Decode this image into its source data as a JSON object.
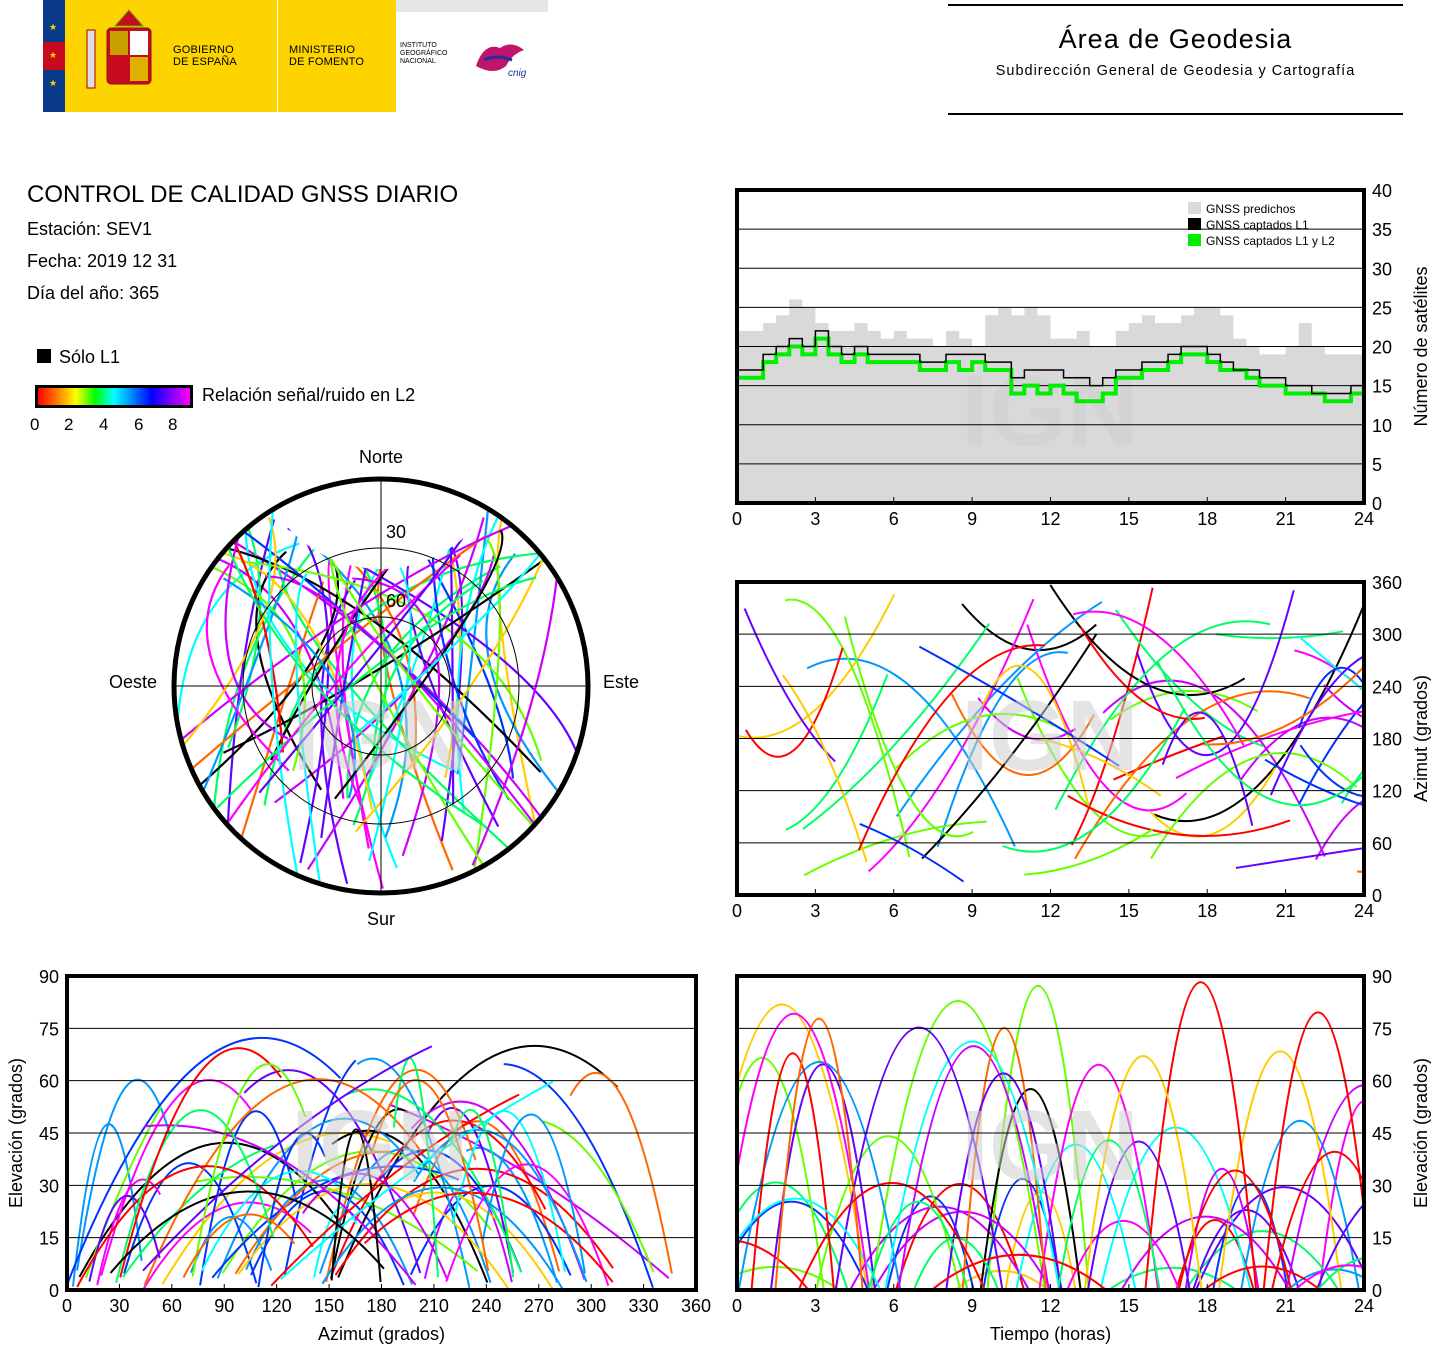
{
  "header": {
    "logo_gov": [
      "GOBIERNO",
      "DE ESPAÑA"
    ],
    "logo_min": [
      "MINISTERIO",
      "DE FOMENTO"
    ],
    "logo_ign": [
      "INSTITUTO",
      "GEOGRÁFICO",
      "NACIONAL"
    ],
    "logo_cnig": "cnig",
    "area_title": "Área de Geodesia",
    "area_subtitle": "Subdirección General de Geodesia y Cartografía"
  },
  "report": {
    "title": "CONTROL DE CALIDAD GNSS DIARIO",
    "station": "Estación: SEV1",
    "date": "Fecha: 2019 12 31",
    "doy": "Día del año: 365",
    "legend_l1": "Sólo L1",
    "colorbar_label": "Relación señal/ruido en L2",
    "colorbar_ticks": [
      "0",
      "2",
      "4",
      "6",
      "8"
    ]
  },
  "watermark": "IGN",
  "colors": {
    "grid": "#000000",
    "predicted": "#d9d9d9",
    "l1": "#000000",
    "l1l2": "#00ee00"
  },
  "chart_data": [
    {
      "type": "area",
      "id": "satellites",
      "ylabel": "Número de satélites",
      "xlim": [
        0,
        24
      ],
      "ylim": [
        0,
        40
      ],
      "xticks": [
        "0",
        "3",
        "6",
        "9",
        "12",
        "15",
        "18",
        "21",
        "24"
      ],
      "yticks": [
        "0",
        "5",
        "10",
        "15",
        "20",
        "25",
        "30",
        "35",
        "40"
      ],
      "legend": [
        "GNSS predichos",
        "GNSS captados L1",
        "GNSS captados L1 y L2"
      ],
      "legend_position": "top-right",
      "x": [
        0,
        0.5,
        1,
        1.5,
        2,
        2.5,
        3,
        3.5,
        4,
        4.5,
        5,
        5.5,
        6,
        6.5,
        7,
        7.5,
        8,
        8.5,
        9,
        9.5,
        10,
        10.5,
        11,
        11.5,
        12,
        12.5,
        13,
        13.5,
        14,
        14.5,
        15,
        15.5,
        16,
        16.5,
        17,
        17.5,
        18,
        18.5,
        19,
        19.5,
        20,
        20.5,
        21,
        21.5,
        22,
        22.5,
        23,
        23.5,
        24
      ],
      "series": [
        {
          "name": "GNSS predichos",
          "values": [
            22,
            22,
            23,
            24,
            26,
            25,
            23,
            22,
            22,
            23,
            22,
            21,
            22,
            21,
            21,
            20,
            22,
            21,
            20,
            24,
            25,
            24,
            25,
            24,
            21,
            21,
            22,
            20,
            20,
            22,
            23,
            24,
            23,
            23,
            24,
            25,
            25,
            24,
            21,
            20,
            19,
            19,
            20,
            23,
            20,
            19,
            19,
            19,
            20
          ]
        },
        {
          "name": "GNSS captados L1",
          "values": [
            17,
            17,
            19,
            20,
            21,
            20,
            22,
            20,
            19,
            20,
            19,
            19,
            19,
            19,
            18,
            18,
            19,
            19,
            19,
            18,
            18,
            16,
            17,
            17,
            17,
            16,
            16,
            15,
            16,
            17,
            17,
            18,
            18,
            19,
            20,
            20,
            19,
            18,
            17,
            17,
            16,
            16,
            15,
            15,
            14,
            14,
            14,
            15,
            16
          ]
        },
        {
          "name": "GNSS captados L1 y L2",
          "values": [
            16,
            16,
            18,
            19,
            20,
            19,
            21,
            19,
            18,
            19,
            18,
            18,
            18,
            18,
            17,
            17,
            18,
            17,
            18,
            17,
            17,
            14,
            15,
            14,
            15,
            14,
            13,
            13,
            14,
            16,
            16,
            17,
            17,
            18,
            19,
            19,
            18,
            17,
            17,
            16,
            15,
            15,
            14,
            14,
            14,
            13,
            13,
            14,
            15
          ]
        }
      ]
    },
    {
      "type": "scatter",
      "id": "skyplot",
      "directions": [
        "Norte",
        "Sur",
        "Este",
        "Oeste"
      ],
      "rings": [
        "30",
        "60"
      ],
      "note": "polar azimuth/elevation tracks colored by L2 SNR"
    },
    {
      "type": "scatter",
      "id": "azimuth_time",
      "ylabel": "Azimut (grados)",
      "xlim": [
        0,
        24
      ],
      "ylim": [
        0,
        360
      ],
      "xticks": [
        "0",
        "3",
        "6",
        "9",
        "12",
        "15",
        "18",
        "21",
        "24"
      ],
      "yticks": [
        "0",
        "60",
        "120",
        "180",
        "240",
        "300",
        "360"
      ]
    },
    {
      "type": "scatter",
      "id": "elevation_azimuth",
      "xlabel": "Azimut (grados)",
      "ylabel": "Elevación (grados)",
      "xlim": [
        0,
        360
      ],
      "ylim": [
        0,
        90
      ],
      "xticks": [
        "0",
        "30",
        "60",
        "90",
        "120",
        "150",
        "180",
        "210",
        "240",
        "270",
        "300",
        "330",
        "360"
      ],
      "yticks": [
        "0",
        "15",
        "30",
        "45",
        "60",
        "75",
        "90"
      ]
    },
    {
      "type": "scatter",
      "id": "elevation_time",
      "xlabel": "Tiempo (horas)",
      "ylabel": "Elevación (grados)",
      "xlim": [
        0,
        24
      ],
      "ylim": [
        0,
        90
      ],
      "xticks": [
        "0",
        "3",
        "6",
        "9",
        "12",
        "15",
        "18",
        "21",
        "24"
      ],
      "yticks": [
        "0",
        "15",
        "30",
        "45",
        "60",
        "75",
        "90"
      ]
    }
  ]
}
